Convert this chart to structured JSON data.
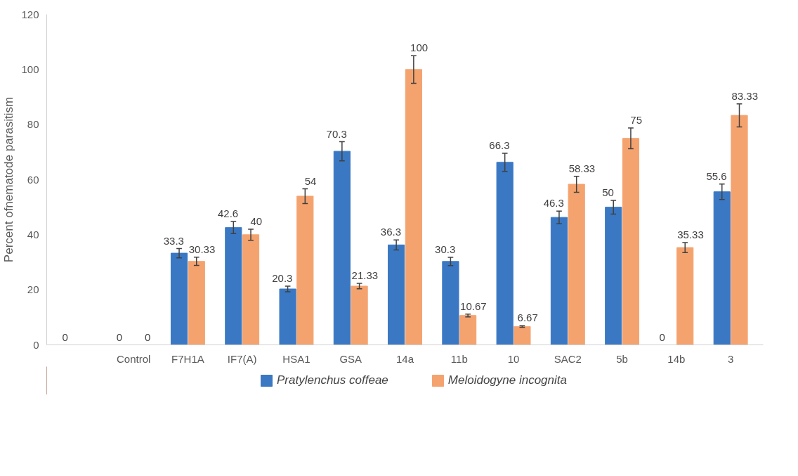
{
  "chart_data": {
    "type": "bar",
    "ylabel": "Percent ofnematode parasitism",
    "categories": [
      null,
      "Control",
      "F7H1A",
      "IF7(A)",
      "HSA1",
      "GSA",
      "14a",
      "11b",
      "10",
      "SAC2",
      "5b",
      "14b",
      "3"
    ],
    "series": [
      {
        "name": "Pratylenchus coffeae",
        "color": "#3a78c3",
        "values": [
          0,
          0,
          33.3,
          42.6,
          20.3,
          70.3,
          36.3,
          30.3,
          66.3,
          46.3,
          50,
          0,
          55.6
        ],
        "errors": [
          null,
          null,
          1.7,
          2.2,
          1,
          3.5,
          1.8,
          1.5,
          3.3,
          2.3,
          2.5,
          null,
          2.8
        ]
      },
      {
        "name": "Meloidogyne incognita",
        "color": "#f4a36f",
        "values": [
          null,
          0,
          30.33,
          40,
          54,
          21.33,
          100,
          10.67,
          6.67,
          58.33,
          75,
          35.33,
          83.33
        ],
        "errors": [
          null,
          null,
          1.5,
          2,
          2.7,
          1,
          5,
          0.5,
          0.3,
          2.9,
          3.75,
          1.8,
          4.2
        ]
      }
    ],
    "ylim": [
      0,
      120
    ],
    "yticks": [
      0,
      20,
      40,
      60,
      80,
      100,
      120
    ],
    "data_labels": true,
    "legend": "bottom",
    "grid": false
  }
}
